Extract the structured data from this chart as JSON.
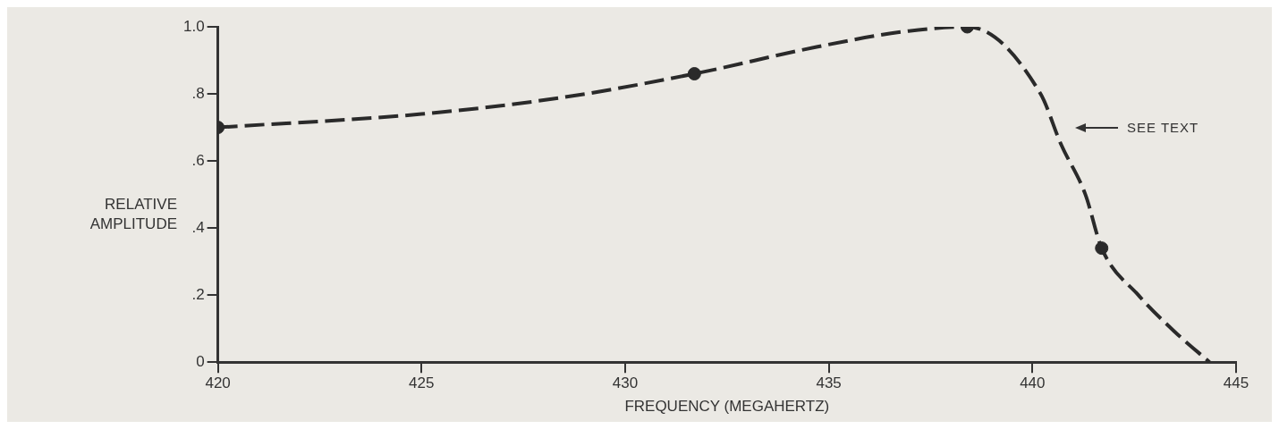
{
  "chart_data": {
    "type": "line",
    "xlabel": "FREQUENCY (MEGAHERTZ)",
    "ylabel": "RELATIVE AMPLITUDE",
    "xlim": [
      420,
      445
    ],
    "xticks": [
      420,
      425,
      430,
      435,
      440,
      445
    ],
    "ylim": [
      0,
      1
    ],
    "yticks": [
      {
        "value": 0,
        "label": "0"
      },
      {
        "value": 0.2,
        "label": ".2"
      },
      {
        "value": 0.4,
        "label": ".4"
      },
      {
        "value": 0.6,
        "label": ".6"
      },
      {
        "value": 0.8,
        "label": ".8"
      },
      {
        "value": 1,
        "label": "1.0"
      }
    ],
    "grid": false,
    "legend": false,
    "series": [
      {
        "type": "line",
        "color": "#2a2a2a",
        "line_style": "dashed",
        "marker": "none",
        "x": [
          420,
          425,
          428.5,
          431.7,
          434.7,
          436.8,
          438.4,
          440.2,
          440.7,
          441.3,
          441.7,
          442.6,
          443.5,
          444.35
        ],
        "values": [
          0.7,
          0.74,
          0.79,
          0.86,
          0.94,
          0.985,
          1.0,
          0.8,
          0.65,
          0.5,
          0.34,
          0.2,
          0.09,
          0
        ]
      },
      {
        "type": "scatter",
        "color": "#2a2a2a",
        "marker": "circle",
        "x": [
          420,
          431.7,
          438.4,
          441.7
        ],
        "values": [
          0.7,
          0.86,
          1.0,
          0.34
        ]
      }
    ],
    "annotations": [
      "SEE TEXT"
    ]
  }
}
